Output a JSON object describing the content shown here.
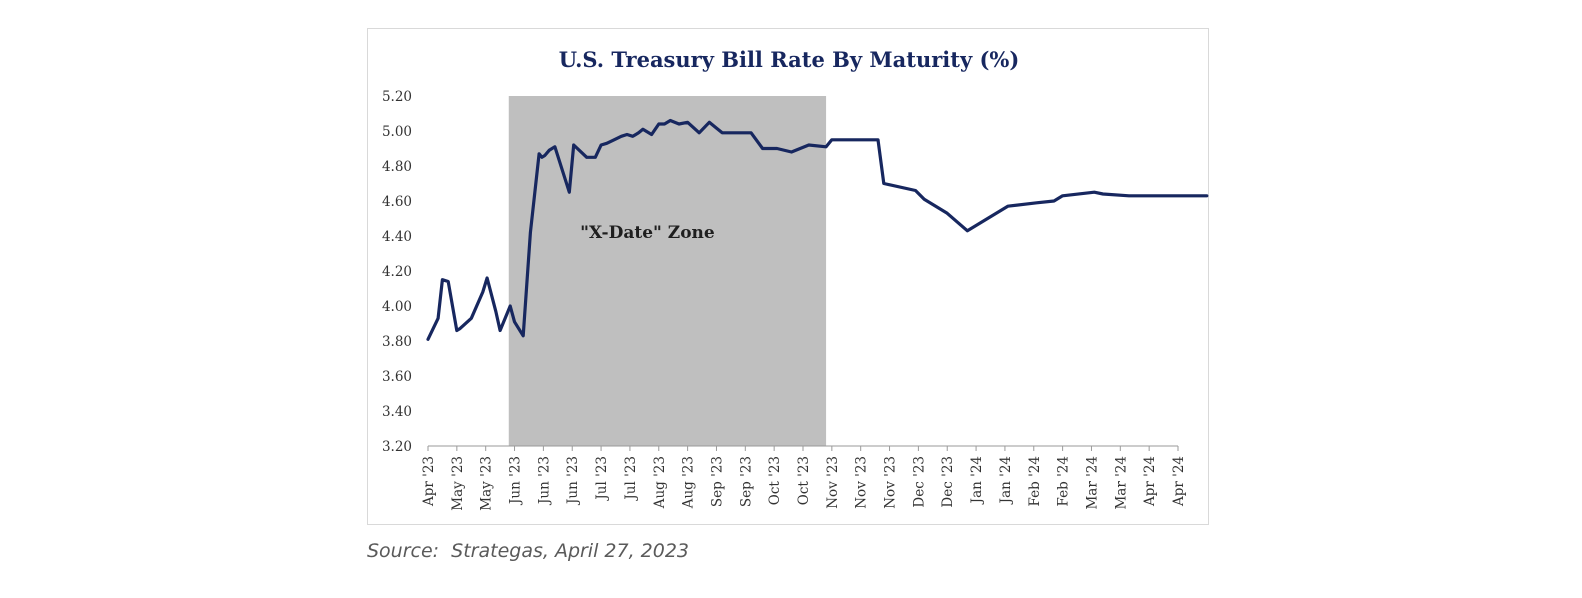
{
  "chart_data": {
    "type": "line",
    "title": "U.S. Treasury Bill Rate By Maturity (%)",
    "xlabel": "",
    "ylabel": "",
    "ylim": [
      3.2,
      5.2
    ],
    "yticks": [
      "3.20",
      "3.40",
      "3.60",
      "3.80",
      "4.00",
      "4.20",
      "4.40",
      "4.60",
      "4.80",
      "5.00",
      "5.20"
    ],
    "xticks": [
      "Apr '23",
      "May '23",
      "May '23",
      "Jun '23",
      "Jun '23",
      "Jun '23",
      "Jul '23",
      "Jul '23",
      "Aug '23",
      "Aug '23",
      "Sep '23",
      "Sep '23",
      "Oct '23",
      "Oct '23",
      "Nov '23",
      "Nov '23",
      "Nov '23",
      "Dec '23",
      "Dec '23",
      "Jan '24",
      "Jan '24",
      "Feb '24",
      "Feb '24",
      "Mar '24",
      "Mar '24",
      "Apr '24",
      "Apr '24"
    ],
    "grid": false,
    "shaded_region": {
      "label": "\"X-Date\" Zone",
      "x_start": 2.8,
      "x_end": 13.8,
      "color": "#bfbfbf"
    },
    "series": [
      {
        "color": "#17275f",
        "x": [
          0,
          0.35,
          0.5,
          0.7,
          1.0,
          1.1,
          1.5,
          1.9,
          2.05,
          2.35,
          2.5,
          2.85,
          3.0,
          3.3,
          3.55,
          3.85,
          3.95,
          4.05,
          4.2,
          4.4,
          4.9,
          5.05,
          5.5,
          5.8,
          6.0,
          6.2,
          6.45,
          6.7,
          6.9,
          7.1,
          7.3,
          7.45,
          7.75,
          8.0,
          8.2,
          8.4,
          8.7,
          9.0,
          9.4,
          9.75,
          10.2,
          10.7,
          11.2,
          11.6,
          12.1,
          12.6,
          13.2,
          13.8,
          14.0,
          15.6,
          15.8,
          16.9,
          17.2,
          18.0,
          18.7,
          19.3,
          20.1,
          21.1,
          21.7,
          22.0,
          23.1,
          23.4,
          24.3,
          25.3,
          26.0,
          27.0
        ],
        "y": [
          3.81,
          3.93,
          4.15,
          4.14,
          3.86,
          3.87,
          3.93,
          4.08,
          4.16,
          3.97,
          3.86,
          4.0,
          3.91,
          3.83,
          4.42,
          4.87,
          4.85,
          4.86,
          4.89,
          4.91,
          4.65,
          4.92,
          4.85,
          4.85,
          4.92,
          4.93,
          4.95,
          4.97,
          4.98,
          4.97,
          4.99,
          5.01,
          4.98,
          5.04,
          5.04,
          5.06,
          5.04,
          5.05,
          4.99,
          5.05,
          4.99,
          4.99,
          4.99,
          4.9,
          4.9,
          4.88,
          4.92,
          4.91,
          4.95,
          4.95,
          4.7,
          4.66,
          4.61,
          4.53,
          4.43,
          4.49,
          4.57,
          4.59,
          4.6,
          4.63,
          4.65,
          4.64,
          4.63,
          4.63,
          4.63,
          4.63
        ]
      }
    ]
  },
  "source": "Source:  Strategas, April 27, 2023",
  "colors": {
    "line": "#17275f",
    "zone": "#bfbfbf",
    "title": "#17275f",
    "axis": "#9a9a9a"
  }
}
